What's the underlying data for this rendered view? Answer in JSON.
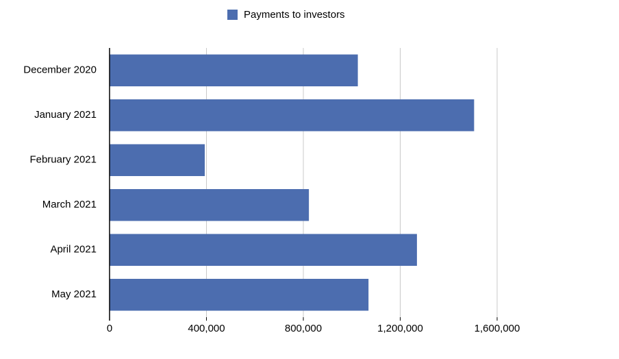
{
  "chart_data": {
    "type": "bar",
    "orientation": "horizontal",
    "categories": [
      "December 2020",
      "January 2021",
      "February 2021",
      "March 2021",
      "April 2021",
      "May 2021"
    ],
    "series": [
      {
        "name": "Payments to investors",
        "color": "#4c6daf",
        "values": [
          1025000,
          1505000,
          393000,
          823000,
          1269000,
          1069000
        ]
      }
    ],
    "xlim": [
      0,
      1600000
    ],
    "xticks": [
      0,
      {
        "value": 400000,
        "label": "400,000"
      },
      {
        "value": 800000,
        "label": "800,000"
      },
      {
        "value": 1200000,
        "label": "1,200,000"
      },
      {
        "value": 1600000,
        "label": "1,600,000"
      }
    ],
    "grid": true,
    "legend": "top"
  }
}
